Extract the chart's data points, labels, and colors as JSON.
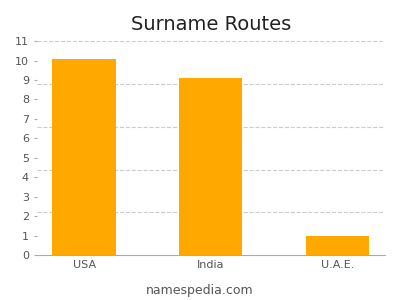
{
  "title": "Surname Routes",
  "categories": [
    "USA",
    "India",
    "U.A.E."
  ],
  "values": [
    10.1,
    9.1,
    1.0
  ],
  "bar_color": "#FFA800",
  "ylim": [
    0,
    11
  ],
  "yticks": [
    0,
    1,
    2,
    3,
    4,
    5,
    6,
    7,
    8,
    9,
    10,
    11
  ],
  "grid_ticks": [
    2.2,
    4.4,
    6.6,
    8.8,
    11.0
  ],
  "grid_color": "#cccccc",
  "background_color": "#ffffff",
  "footer_text": "namespedia.com",
  "title_fontsize": 14,
  "tick_fontsize": 8,
  "footer_fontsize": 9
}
